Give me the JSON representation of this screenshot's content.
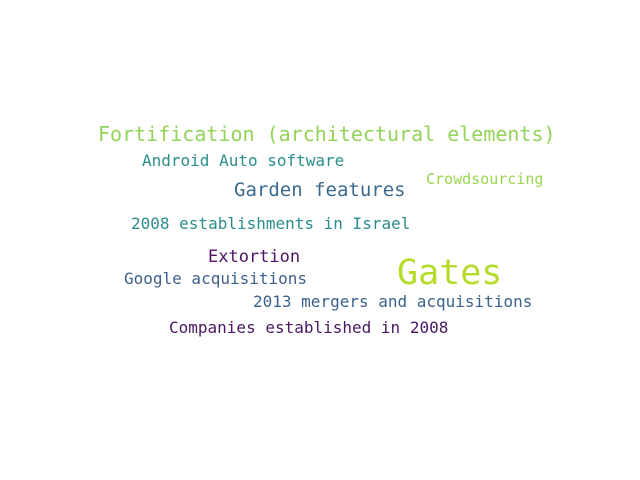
{
  "word_cloud": {
    "words": [
      {
        "text": "Fortification (architectural elements)",
        "color": "#93d35a"
      },
      {
        "text": "Android Auto software",
        "color": "#2a8f8c"
      },
      {
        "text": "Crowdsourcing",
        "color": "#9ad552"
      },
      {
        "text": "Garden features",
        "color": "#3b6a8f"
      },
      {
        "text": "2008 establishments in Israel",
        "color": "#2a8c8c"
      },
      {
        "text": "Extortion",
        "color": "#4e1463"
      },
      {
        "text": "Gates",
        "color": "#b5dc2a"
      },
      {
        "text": "Google acquisitions",
        "color": "#3f5f8c"
      },
      {
        "text": "2013 mergers and acquisitions",
        "color": "#3a628c"
      },
      {
        "text": "Companies established in 2008",
        "color": "#4a1762"
      }
    ]
  }
}
